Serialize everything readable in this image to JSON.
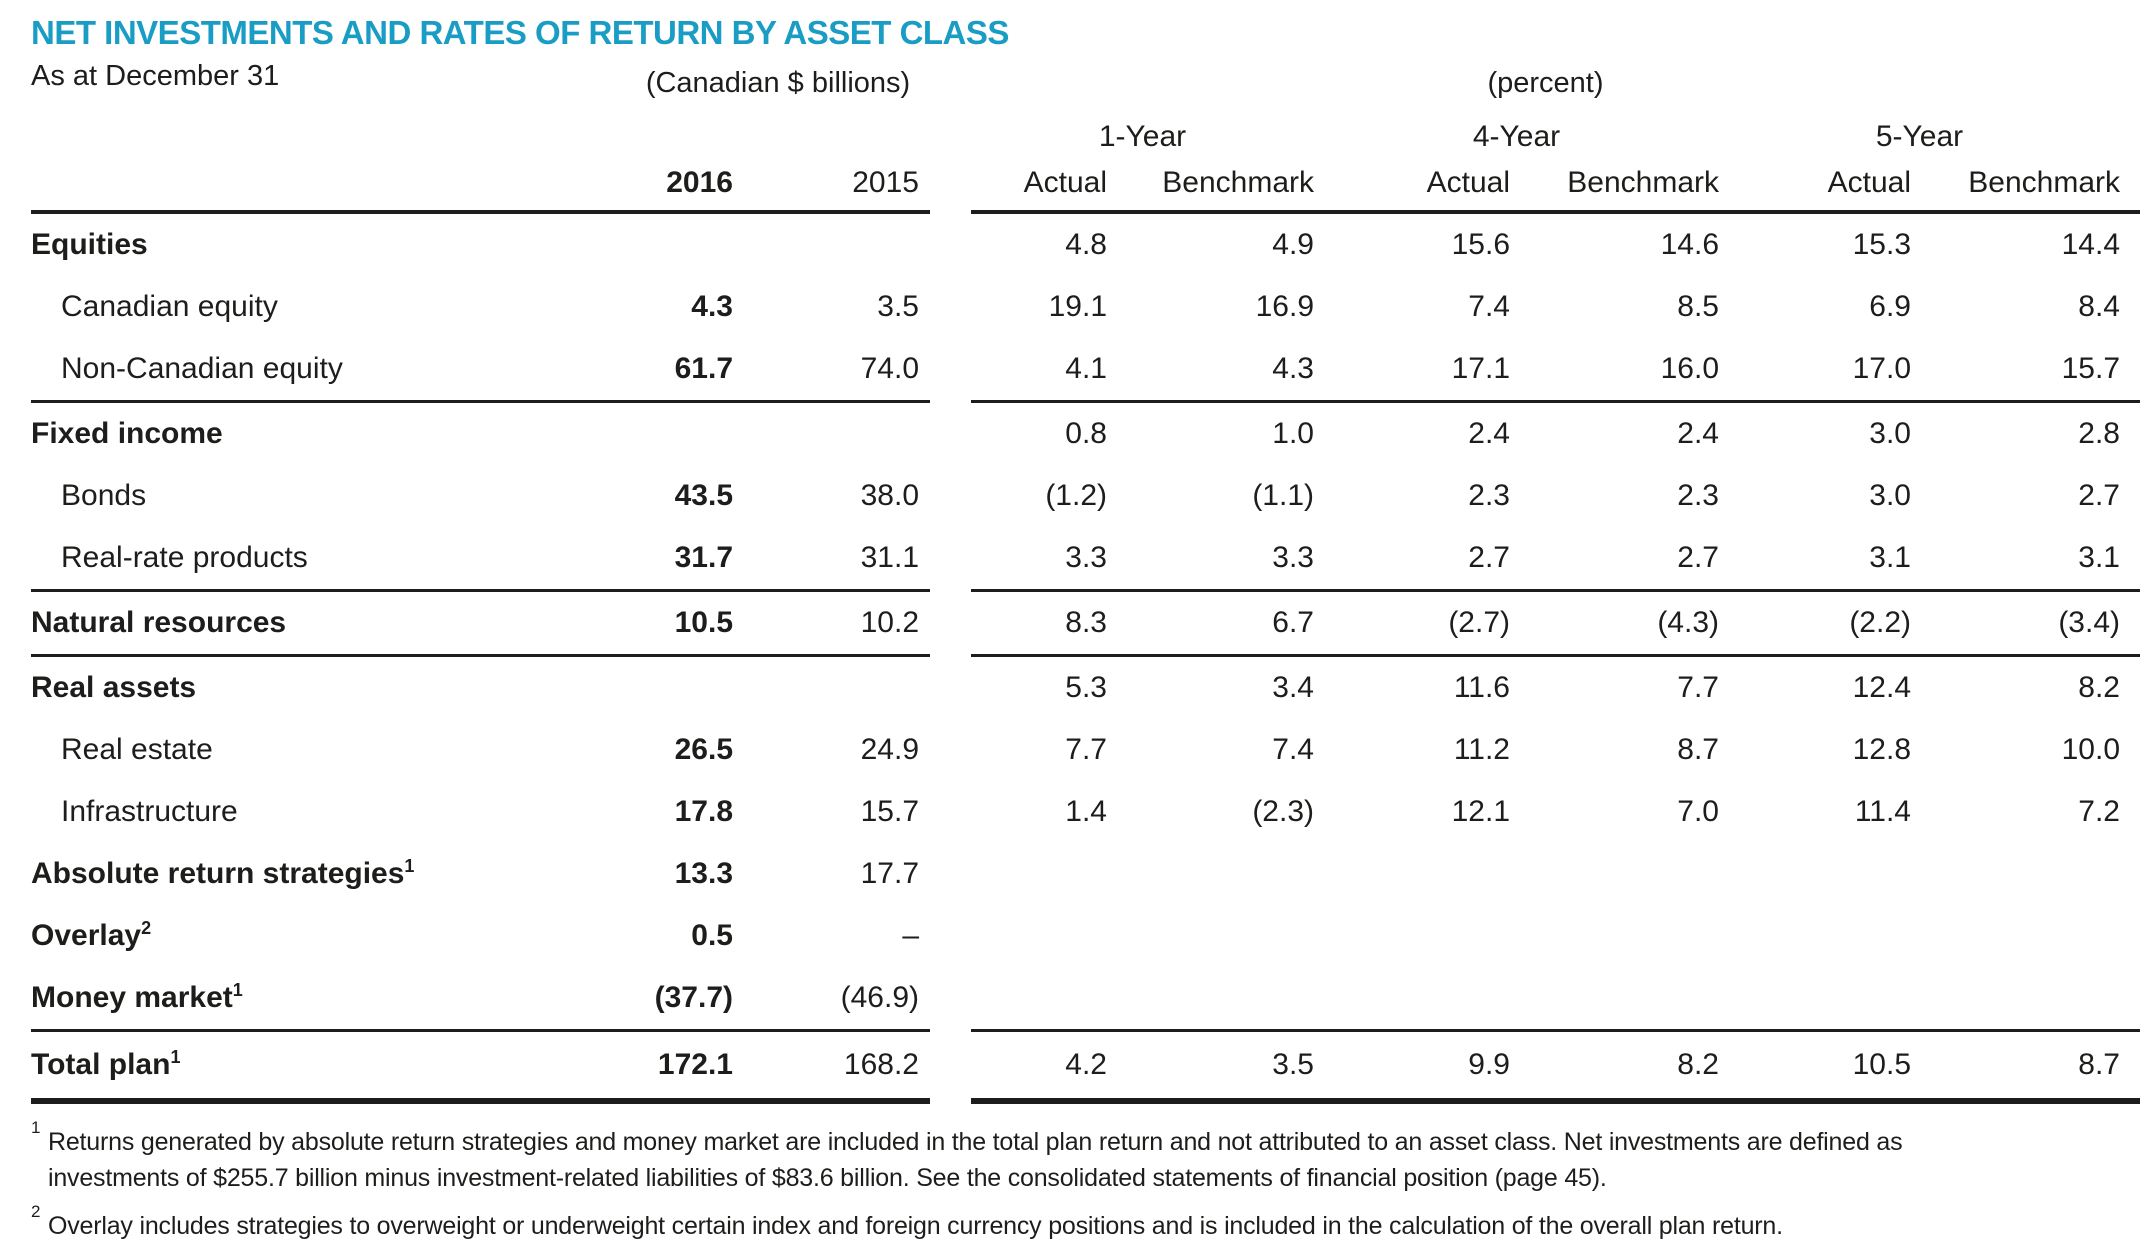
{
  "title": "NET INVESTMENTS AND RATES OF RETURN BY ASSET CLASS",
  "as_at": "As at December 31",
  "units": {
    "billions": "(Canadian $ billions)",
    "percent": "(percent)"
  },
  "periods": [
    "1-Year",
    "4-Year",
    "5-Year"
  ],
  "columns": {
    "billions": [
      "2016",
      "2015"
    ],
    "percent": [
      "Actual",
      "Benchmark",
      "Actual",
      "Benchmark",
      "Actual",
      "Benchmark"
    ]
  },
  "colors": {
    "accent": "#1a9dc4",
    "text": "#1d1d1b"
  },
  "table": {
    "rows": [
      {
        "label": "Equities",
        "bold": true,
        "indent": false,
        "sup": null,
        "billions": [
          "",
          ""
        ],
        "percent": [
          "4.8",
          "4.9",
          "15.6",
          "14.6",
          "15.3",
          "14.4"
        ],
        "rule_after": null
      },
      {
        "label": "Canadian equity",
        "bold": false,
        "indent": true,
        "sup": null,
        "billions": [
          "4.3",
          "3.5"
        ],
        "percent": [
          "19.1",
          "16.9",
          "7.4",
          "8.5",
          "6.9",
          "8.4"
        ],
        "rule_after": null
      },
      {
        "label": "Non-Canadian equity",
        "bold": false,
        "indent": true,
        "sup": null,
        "billions": [
          "61.7",
          "74.0"
        ],
        "percent": [
          "4.1",
          "4.3",
          "17.1",
          "16.0",
          "17.0",
          "15.7"
        ],
        "rule_after": "mid"
      },
      {
        "label": "Fixed income",
        "bold": true,
        "indent": false,
        "sup": null,
        "billions": [
          "",
          ""
        ],
        "percent": [
          "0.8",
          "1.0",
          "2.4",
          "2.4",
          "3.0",
          "2.8"
        ],
        "rule_after": null
      },
      {
        "label": "Bonds",
        "bold": false,
        "indent": true,
        "sup": null,
        "billions": [
          "43.5",
          "38.0"
        ],
        "percent": [
          "(1.2)",
          "(1.1)",
          "2.3",
          "2.3",
          "3.0",
          "2.7"
        ],
        "rule_after": null
      },
      {
        "label": "Real-rate products",
        "bold": false,
        "indent": true,
        "sup": null,
        "billions": [
          "31.7",
          "31.1"
        ],
        "percent": [
          "3.3",
          "3.3",
          "2.7",
          "2.7",
          "3.1",
          "3.1"
        ],
        "rule_after": "mid"
      },
      {
        "label": "Natural resources",
        "bold": true,
        "indent": false,
        "sup": null,
        "billions": [
          "10.5",
          "10.2"
        ],
        "percent": [
          "8.3",
          "6.7",
          "(2.7)",
          "(4.3)",
          "(2.2)",
          "(3.4)"
        ],
        "rule_after": "mid"
      },
      {
        "label": "Real assets",
        "bold": true,
        "indent": false,
        "sup": null,
        "billions": [
          "",
          ""
        ],
        "percent": [
          "5.3",
          "3.4",
          "11.6",
          "7.7",
          "12.4",
          "8.2"
        ],
        "rule_after": null
      },
      {
        "label": "Real estate",
        "bold": false,
        "indent": true,
        "sup": null,
        "billions": [
          "26.5",
          "24.9"
        ],
        "percent": [
          "7.7",
          "7.4",
          "11.2",
          "8.7",
          "12.8",
          "10.0"
        ],
        "rule_after": null
      },
      {
        "label": "Infrastructure",
        "bold": false,
        "indent": true,
        "sup": null,
        "billions": [
          "17.8",
          "15.7"
        ],
        "percent": [
          "1.4",
          "(2.3)",
          "12.1",
          "7.0",
          "11.4",
          "7.2"
        ],
        "rule_after": null
      },
      {
        "label": "Absolute return strategies",
        "bold": true,
        "indent": false,
        "sup": "1",
        "billions": [
          "13.3",
          "17.7"
        ],
        "percent": null,
        "rule_after": null
      },
      {
        "label": "Overlay",
        "bold": true,
        "indent": false,
        "sup": "2",
        "billions": [
          "0.5",
          "–"
        ],
        "percent": null,
        "rule_after": null
      },
      {
        "label": "Money market",
        "bold": true,
        "indent": false,
        "sup": "1",
        "billions": [
          "(37.7)",
          "(46.9)"
        ],
        "percent": null,
        "rule_after": "mid"
      },
      {
        "label": "Total plan",
        "bold": true,
        "indent": false,
        "sup": "1",
        "total": true,
        "billions": [
          "172.1",
          "168.2"
        ],
        "percent": [
          "4.2",
          "3.5",
          "9.9",
          "8.2",
          "10.5",
          "8.7"
        ],
        "rule_after": "bottom"
      }
    ]
  },
  "footnotes": [
    {
      "marker": "1",
      "lines": [
        "Returns generated by absolute return strategies and money market are included in the total plan return and not attributed to an asset class. Net investments are defined as",
        "investments of $255.7 billion minus investment-related liabilities of $83.6 billion. See the consolidated statements of financial position (page 45)."
      ]
    },
    {
      "marker": "2",
      "lines": [
        "Overlay includes strategies to overweight or underweight certain index and foreign currency positions and is included in the calculation of the overall plan return."
      ]
    }
  ]
}
